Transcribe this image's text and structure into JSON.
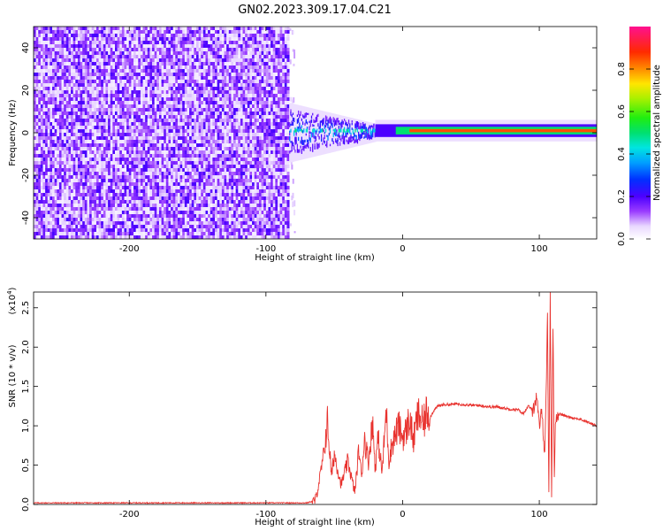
{
  "figure": {
    "title": "GN02.2023.309.17.04.C21"
  },
  "chart_data": [
    {
      "type": "heatmap",
      "xlabel": "Height of straight line (km)",
      "ylabel": "Frequency (Hz)",
      "xlim": [
        -270,
        142
      ],
      "ylim": [
        -50,
        50
      ],
      "xticks": [
        -200,
        -100,
        0,
        100
      ],
      "yticks": [
        -40,
        -20,
        0,
        20,
        40
      ],
      "colorbar": {
        "label": "Normalized spectral amplitude",
        "range": [
          0,
          1
        ],
        "ticks": [
          0.0,
          0.2,
          0.4,
          0.6,
          0.8
        ],
        "tick_labels": [
          "0.0",
          "0.2",
          "0.4",
          "0.6",
          "0.8"
        ]
      },
      "regions": [
        {
          "x_range": [
            -270,
            -83
          ],
          "freq_range": [
            -50,
            50
          ],
          "amplitude_range": [
            0.0,
            0.15
          ],
          "description": "broadband noise"
        },
        {
          "x_range": [
            -83,
            -20
          ],
          "freq_range": [
            -10,
            10
          ],
          "amplitude_range": [
            0.1,
            0.45
          ],
          "description": "signal onset"
        },
        {
          "x_range": [
            -20,
            142
          ],
          "freq_center": 1,
          "freq_halfwidth": 3,
          "amplitude_range": [
            0.5,
            0.85
          ],
          "description": "steady carrier"
        }
      ]
    },
    {
      "type": "line",
      "xlabel": "Height of straight line (km)",
      "ylabel": "SNR (10 * v/v)",
      "y_multiplier": "(x10^4)",
      "xlim": [
        -270,
        142
      ],
      "ylim": [
        0,
        2.7
      ],
      "xticks": [
        -200,
        -100,
        0,
        100
      ],
      "yticks": [
        0.0,
        0.5,
        1.0,
        1.5,
        2.0,
        2.5
      ],
      "ytick_labels": [
        "0.0",
        "0.5",
        "1.0",
        "1.5",
        "2.0",
        "2.5"
      ],
      "series": [
        {
          "color": "#e8322e",
          "x": [
            -270,
            -200,
            -150,
            -100,
            -70,
            -64,
            -62,
            -58,
            -55,
            -52,
            -50,
            -45,
            -40,
            -35,
            -32,
            -30,
            -28,
            -25,
            -22,
            -20,
            -18,
            -15,
            -12,
            -10,
            -8,
            -5,
            -3,
            0,
            3,
            5,
            8,
            10,
            12,
            15,
            18,
            20,
            23,
            26,
            30,
            35,
            40,
            45,
            50,
            55,
            60,
            65,
            70,
            75,
            80,
            85,
            88,
            92,
            95,
            98,
            100,
            102,
            104,
            106,
            107,
            108,
            109,
            110,
            111,
            112,
            115,
            120,
            125,
            130,
            135,
            142
          ],
          "y": [
            0.02,
            0.02,
            0.02,
            0.02,
            0.02,
            0.05,
            0.2,
            0.6,
            1.05,
            0.35,
            0.65,
            0.25,
            0.55,
            0.15,
            0.7,
            0.35,
            0.85,
            0.55,
            1.05,
            0.45,
            0.85,
            0.4,
            1.2,
            0.55,
            0.75,
            0.9,
            1.0,
            0.85,
            0.95,
            1.1,
            0.8,
            1.05,
            1.15,
            1.0,
            1.2,
            1.1,
            1.2,
            1.25,
            1.27,
            1.27,
            1.28,
            1.27,
            1.26,
            1.26,
            1.25,
            1.24,
            1.24,
            1.22,
            1.21,
            1.2,
            1.15,
            1.25,
            1.2,
            1.35,
            1.0,
            1.2,
            0.6,
            2.35,
            0.15,
            2.7,
            0.1,
            2.3,
            0.4,
            1.12,
            1.15,
            1.12,
            1.1,
            1.08,
            1.05,
            1.0
          ]
        }
      ]
    }
  ]
}
